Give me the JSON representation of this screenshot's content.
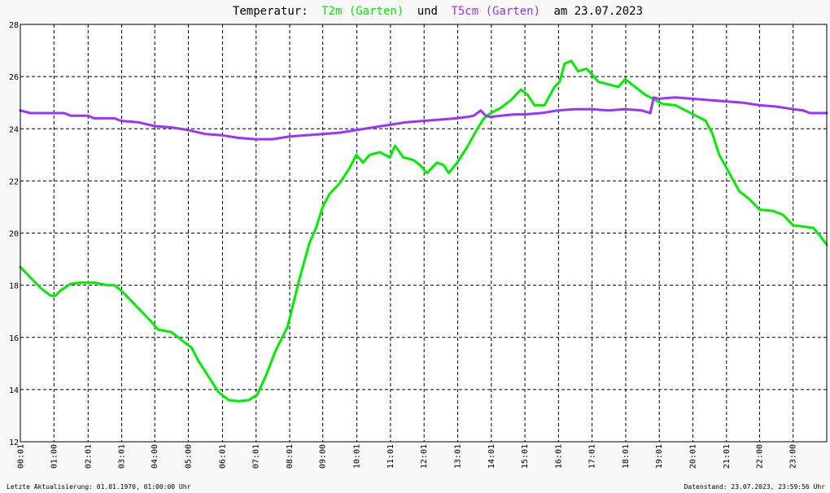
{
  "chart_data": {
    "type": "line",
    "title": {
      "prefix": "Temperatur:",
      "series1_label": "T2m (Garten)",
      "connector": "und",
      "series2_label": "T5cm (Garten)",
      "suffix": "am 23.07.2023"
    },
    "ylim": [
      12,
      28
    ],
    "yticks": [
      "12",
      "14",
      "16",
      "18",
      "20",
      "22",
      "24",
      "26",
      "28"
    ],
    "xlim": [
      0,
      24
    ],
    "xticks": [
      {
        "x": 0.0167,
        "label": "00:01"
      },
      {
        "x": 1.0,
        "label": "01:00"
      },
      {
        "x": 2.0167,
        "label": "02:01"
      },
      {
        "x": 3.0167,
        "label": "03:01"
      },
      {
        "x": 4.0,
        "label": "04:00"
      },
      {
        "x": 5.0,
        "label": "05:00"
      },
      {
        "x": 6.0167,
        "label": "06:01"
      },
      {
        "x": 7.0167,
        "label": "07:01"
      },
      {
        "x": 8.0167,
        "label": "08:01"
      },
      {
        "x": 9.0,
        "label": "09:00"
      },
      {
        "x": 10.0167,
        "label": "10:01"
      },
      {
        "x": 11.0167,
        "label": "11:01"
      },
      {
        "x": 12.0167,
        "label": "12:01"
      },
      {
        "x": 13.0167,
        "label": "13:01"
      },
      {
        "x": 14.0167,
        "label": "14:01"
      },
      {
        "x": 15.0167,
        "label": "15:01"
      },
      {
        "x": 16.0167,
        "label": "16:01"
      },
      {
        "x": 17.0167,
        "label": "17:01"
      },
      {
        "x": 18.0167,
        "label": "18:01"
      },
      {
        "x": 19.0167,
        "label": "19:01"
      },
      {
        "x": 20.0167,
        "label": "20:01"
      },
      {
        "x": 21.0167,
        "label": "21:01"
      },
      {
        "x": 22.0,
        "label": "22:00"
      },
      {
        "x": 23.0,
        "label": "23:00"
      }
    ],
    "grid": true,
    "series": [
      {
        "name": "T2m (Garten)",
        "color": "#00ee00",
        "points": [
          [
            0.0,
            18.7
          ],
          [
            0.3,
            18.3
          ],
          [
            0.6,
            17.9
          ],
          [
            0.9,
            17.6
          ],
          [
            1.05,
            17.6
          ],
          [
            1.2,
            17.8
          ],
          [
            1.5,
            18.05
          ],
          [
            1.8,
            18.1
          ],
          [
            2.2,
            18.1
          ],
          [
            2.6,
            18.0
          ],
          [
            2.8,
            18.0
          ],
          [
            3.0,
            17.8
          ],
          [
            3.3,
            17.4
          ],
          [
            3.6,
            17.0
          ],
          [
            3.9,
            16.6
          ],
          [
            4.1,
            16.3
          ],
          [
            4.5,
            16.2
          ],
          [
            4.8,
            15.9
          ],
          [
            5.1,
            15.6
          ],
          [
            5.3,
            15.1
          ],
          [
            5.6,
            14.5
          ],
          [
            5.9,
            13.9
          ],
          [
            6.2,
            13.6
          ],
          [
            6.5,
            13.55
          ],
          [
            6.8,
            13.6
          ],
          [
            7.05,
            13.8
          ],
          [
            7.3,
            14.5
          ],
          [
            7.6,
            15.5
          ],
          [
            7.95,
            16.4
          ],
          [
            8.3,
            18.2
          ],
          [
            8.6,
            19.6
          ],
          [
            8.8,
            20.2
          ],
          [
            9.0,
            21.0
          ],
          [
            9.2,
            21.5
          ],
          [
            9.5,
            21.9
          ],
          [
            9.8,
            22.5
          ],
          [
            10.0,
            23.0
          ],
          [
            10.2,
            22.7
          ],
          [
            10.4,
            23.0
          ],
          [
            10.7,
            23.1
          ],
          [
            11.0,
            22.9
          ],
          [
            11.15,
            23.35
          ],
          [
            11.4,
            22.9
          ],
          [
            11.7,
            22.8
          ],
          [
            11.9,
            22.6
          ],
          [
            12.1,
            22.3
          ],
          [
            12.4,
            22.7
          ],
          [
            12.6,
            22.6
          ],
          [
            12.75,
            22.3
          ],
          [
            13.0,
            22.7
          ],
          [
            13.3,
            23.3
          ],
          [
            13.6,
            24.0
          ],
          [
            13.8,
            24.4
          ],
          [
            14.0,
            24.6
          ],
          [
            14.3,
            24.8
          ],
          [
            14.6,
            25.1
          ],
          [
            14.9,
            25.5
          ],
          [
            15.1,
            25.3
          ],
          [
            15.3,
            24.9
          ],
          [
            15.6,
            24.9
          ],
          [
            15.9,
            25.6
          ],
          [
            16.05,
            25.8
          ],
          [
            16.2,
            26.5
          ],
          [
            16.4,
            26.6
          ],
          [
            16.6,
            26.2
          ],
          [
            16.85,
            26.3
          ],
          [
            17.0,
            26.1
          ],
          [
            17.2,
            25.8
          ],
          [
            17.5,
            25.7
          ],
          [
            17.8,
            25.6
          ],
          [
            18.0,
            25.9
          ],
          [
            18.3,
            25.6
          ],
          [
            18.6,
            25.3
          ],
          [
            18.9,
            25.1
          ],
          [
            19.1,
            24.95
          ],
          [
            19.5,
            24.9
          ],
          [
            19.8,
            24.7
          ],
          [
            20.1,
            24.5
          ],
          [
            20.4,
            24.3
          ],
          [
            20.6,
            23.8
          ],
          [
            20.8,
            23.0
          ],
          [
            21.1,
            22.3
          ],
          [
            21.4,
            21.6
          ],
          [
            21.7,
            21.3
          ],
          [
            22.0,
            20.9
          ],
          [
            22.4,
            20.85
          ],
          [
            22.7,
            20.7
          ],
          [
            23.0,
            20.3
          ],
          [
            23.3,
            20.25
          ],
          [
            23.6,
            20.2
          ],
          [
            23.8,
            19.9
          ],
          [
            24.0,
            19.55
          ]
        ]
      },
      {
        "name": "T5cm (Garten)",
        "color": "#9933ff",
        "points": [
          [
            0.0,
            24.7
          ],
          [
            0.3,
            24.6
          ],
          [
            0.8,
            24.6
          ],
          [
            1.3,
            24.6
          ],
          [
            1.5,
            24.5
          ],
          [
            2.0,
            24.5
          ],
          [
            2.2,
            24.4
          ],
          [
            2.8,
            24.4
          ],
          [
            3.0,
            24.3
          ],
          [
            3.5,
            24.25
          ],
          [
            4.0,
            24.1
          ],
          [
            4.5,
            24.05
          ],
          [
            5.0,
            23.95
          ],
          [
            5.5,
            23.8
          ],
          [
            6.0,
            23.75
          ],
          [
            6.5,
            23.65
          ],
          [
            7.0,
            23.6
          ],
          [
            7.5,
            23.6
          ],
          [
            8.0,
            23.7
          ],
          [
            8.5,
            23.75
          ],
          [
            9.0,
            23.8
          ],
          [
            9.5,
            23.85
          ],
          [
            10.0,
            23.95
          ],
          [
            10.5,
            24.05
          ],
          [
            11.0,
            24.15
          ],
          [
            11.5,
            24.25
          ],
          [
            12.0,
            24.3
          ],
          [
            12.5,
            24.35
          ],
          [
            13.0,
            24.4
          ],
          [
            13.3,
            24.45
          ],
          [
            13.5,
            24.5
          ],
          [
            13.7,
            24.7
          ],
          [
            13.85,
            24.5
          ],
          [
            14.0,
            24.45
          ],
          [
            14.3,
            24.5
          ],
          [
            14.7,
            24.55
          ],
          [
            15.0,
            24.55
          ],
          [
            15.5,
            24.6
          ],
          [
            16.0,
            24.7
          ],
          [
            16.5,
            24.75
          ],
          [
            17.0,
            24.75
          ],
          [
            17.5,
            24.7
          ],
          [
            18.0,
            24.75
          ],
          [
            18.5,
            24.7
          ],
          [
            18.75,
            24.6
          ],
          [
            18.85,
            25.2
          ],
          [
            19.0,
            25.15
          ],
          [
            19.5,
            25.2
          ],
          [
            20.0,
            25.15
          ],
          [
            20.5,
            25.1
          ],
          [
            21.0,
            25.05
          ],
          [
            21.5,
            25.0
          ],
          [
            22.0,
            24.9
          ],
          [
            22.5,
            24.85
          ],
          [
            23.0,
            24.75
          ],
          [
            23.3,
            24.7
          ],
          [
            23.5,
            24.6
          ],
          [
            24.0,
            24.6
          ]
        ]
      }
    ]
  },
  "footer": {
    "left": "Letzte Aktualisierung: 01.01.1970, 01:00:00 Uhr",
    "right": "Datenstand: 23.07.2023, 23:59:56 Uhr"
  },
  "colors": {
    "background": "#f8f8f8",
    "plot_background": "#ffffff",
    "grid": "#000000",
    "title_text": "#000000",
    "series1": "#00ee00",
    "series2": "#9933ff"
  }
}
